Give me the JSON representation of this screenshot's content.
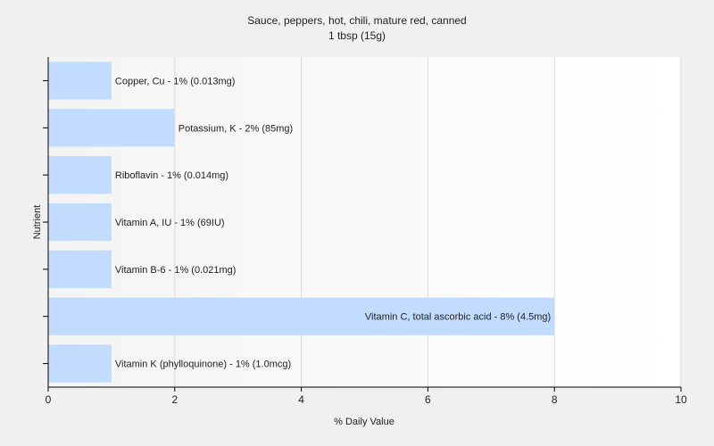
{
  "chart_data": {
    "type": "bar",
    "orientation": "horizontal",
    "title": "Sauce, peppers, hot, chili, mature red, canned",
    "subtitle": "1 tbsp (15g)",
    "xlabel": "% Daily Value",
    "ylabel": "Nutrient",
    "xlim": [
      0,
      10
    ],
    "xticks": [
      "0",
      "2",
      "4",
      "6",
      "8",
      "10"
    ],
    "grid": true,
    "legend": "none",
    "bar_color": "#c2dcff",
    "bars": [
      {
        "value": 1,
        "label": "Copper, Cu - 1% (0.013mg)"
      },
      {
        "value": 2,
        "label": "Potassium, K - 2% (85mg)"
      },
      {
        "value": 1,
        "label": "Riboflavin - 1% (0.014mg)"
      },
      {
        "value": 1,
        "label": "Vitamin A, IU - 1% (69IU)"
      },
      {
        "value": 1,
        "label": "Vitamin B-6 - 1% (0.021mg)"
      },
      {
        "value": 8,
        "label": "Vitamin C, total ascorbic acid - 8% (4.5mg)"
      },
      {
        "value": 1,
        "label": "Vitamin K (phylloquinone) - 1% (1.0mcg)"
      }
    ]
  }
}
